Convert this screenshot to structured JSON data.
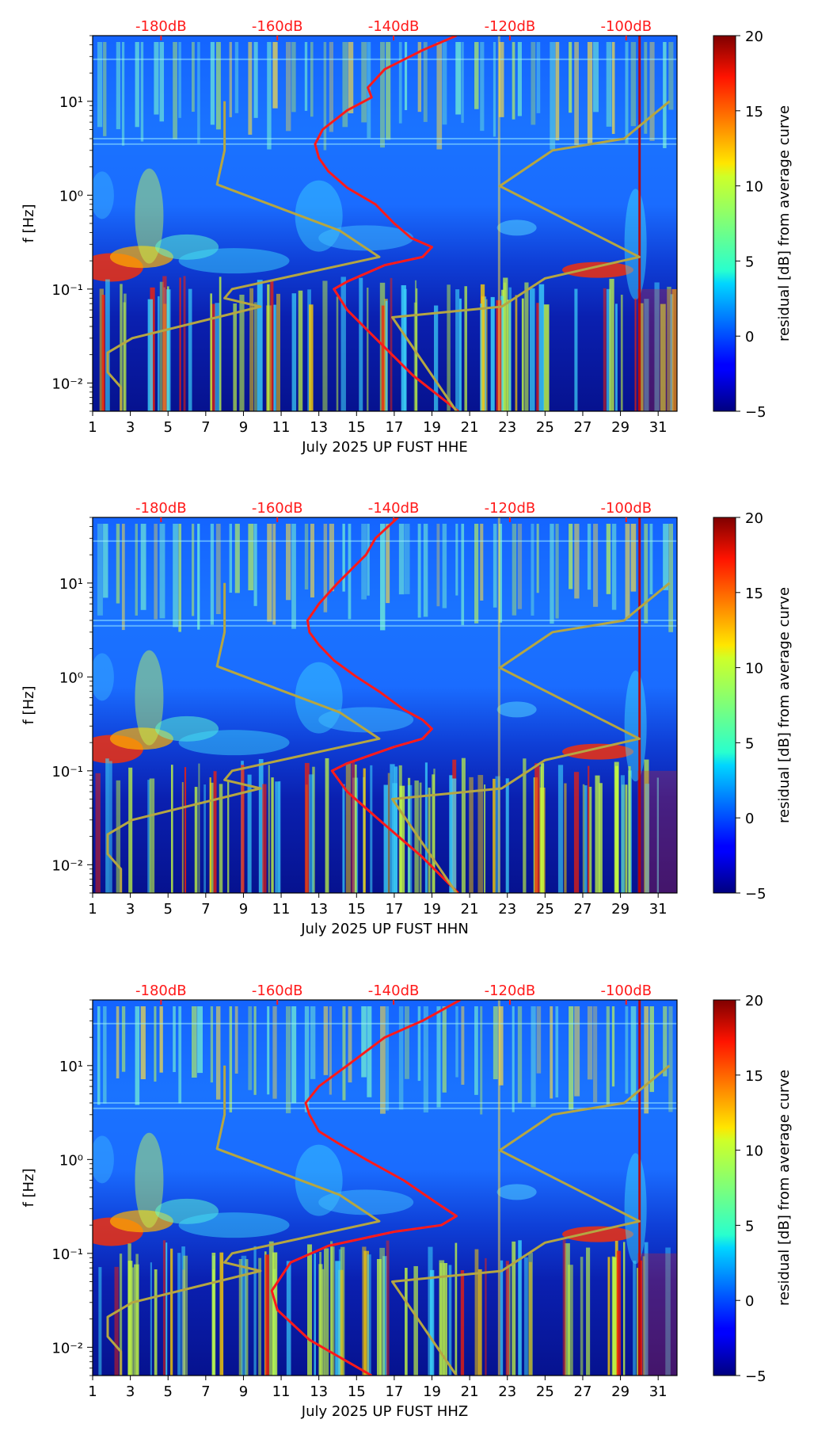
{
  "figure": {
    "title": ""
  },
  "chart_data": [
    {
      "type": "heatmap",
      "title": "",
      "xlabel": "July 2025 UP FUST  HHE",
      "ylabel": "f [Hz]",
      "x_ticks": [
        "1",
        "3",
        "5",
        "7",
        "9",
        "11",
        "13",
        "15",
        "17",
        "19",
        "21",
        "23",
        "25",
        "27",
        "29",
        "31"
      ],
      "xlim": [
        1,
        32
      ],
      "ylim": [
        0.005,
        50
      ],
      "yscale": "log",
      "y_ticks": [
        "10⁻²",
        "10⁻¹",
        "10⁰",
        "10¹"
      ],
      "top_axis_labels": [
        "-180dB",
        "-160dB",
        "-140dB",
        "-120dB",
        "-100dB"
      ],
      "colorbar": {
        "label": "residual [dB] from average curve",
        "min": -5,
        "max": 20,
        "ticks": [
          "−5",
          "0",
          "5",
          "10",
          "15",
          "20"
        ]
      },
      "series": [
        {
          "name": "average PSD (red)",
          "color": "#ff1a1a",
          "x": [
            20.3,
            18.5,
            16.5,
            15.6,
            15.8,
            14.5,
            13.2,
            12.8,
            13.0,
            13.5,
            14.5,
            16.0,
            17.0,
            17.9,
            19.0,
            18.5,
            16.5,
            14.5,
            13.8,
            14.5,
            16.0,
            18.0,
            20.4
          ],
          "f": [
            50,
            35,
            22,
            14,
            11,
            8,
            5,
            3.5,
            2.5,
            1.8,
            1.2,
            0.8,
            0.5,
            0.35,
            0.28,
            0.22,
            0.18,
            0.12,
            0.1,
            0.06,
            0.03,
            0.012,
            0.005
          ]
        },
        {
          "name": "low noise model (olive)",
          "color": "#b5a642",
          "x": [
            8.0,
            8.0,
            7.6,
            14.1,
            16.2,
            8.4,
            8.0,
            9.9,
            3.1,
            1.8,
            1.8,
            2.5,
            2.5
          ],
          "f": [
            10,
            3.0,
            1.3,
            0.42,
            0.22,
            0.1,
            0.08,
            0.065,
            0.03,
            0.021,
            0.013,
            0.009,
            0.005
          ]
        },
        {
          "name": "high noise model (olive)",
          "color": "#b5a642",
          "x": [
            31.6,
            29.2,
            25.4,
            22.6,
            30.0,
            25.0,
            22.7,
            16.9,
            20.3
          ],
          "f": [
            10,
            4.0,
            3.0,
            1.25,
            0.22,
            0.13,
            0.065,
            0.05,
            0.005
          ]
        }
      ]
    },
    {
      "type": "heatmap",
      "title": "",
      "xlabel": "July 2025 UP FUST  HHN",
      "ylabel": "f [Hz]",
      "x_ticks": [
        "1",
        "3",
        "5",
        "7",
        "9",
        "11",
        "13",
        "15",
        "17",
        "19",
        "21",
        "23",
        "25",
        "27",
        "29",
        "31"
      ],
      "xlim": [
        1,
        32
      ],
      "ylim": [
        0.005,
        50
      ],
      "yscale": "log",
      "y_ticks": [
        "10⁻²",
        "10⁻¹",
        "10⁰",
        "10¹"
      ],
      "top_axis_labels": [
        "-180dB",
        "-160dB",
        "-140dB",
        "-120dB",
        "-100dB"
      ],
      "colorbar": {
        "label": "residual [dB] from average curve",
        "min": -5,
        "max": 20,
        "ticks": [
          "−5",
          "0",
          "5",
          "10",
          "15",
          "20"
        ]
      },
      "series": [
        {
          "name": "average PSD (red)",
          "color": "#ff1a1a",
          "x": [
            17.2,
            16.0,
            15.5,
            14.0,
            13.0,
            12.4,
            12.5,
            13.0,
            13.8,
            15.0,
            16.2,
            17.5,
            18.5,
            19.0,
            18.5,
            17.0,
            14.5,
            13.7,
            14.5,
            16.2,
            18.5,
            20.4
          ],
          "f": [
            50,
            30,
            20,
            10,
            6,
            4,
            3,
            2.2,
            1.5,
            1.0,
            0.7,
            0.45,
            0.35,
            0.28,
            0.22,
            0.18,
            0.12,
            0.1,
            0.06,
            0.03,
            0.012,
            0.005
          ]
        },
        {
          "name": "low noise model (olive)",
          "color": "#b5a642",
          "x": [
            8.0,
            8.0,
            7.6,
            14.1,
            16.2,
            8.4,
            8.0,
            9.9,
            3.1,
            1.8,
            1.8,
            2.5,
            2.5
          ],
          "f": [
            10,
            3.0,
            1.3,
            0.42,
            0.22,
            0.1,
            0.08,
            0.065,
            0.03,
            0.021,
            0.013,
            0.009,
            0.005
          ]
        },
        {
          "name": "high noise model (olive)",
          "color": "#b5a642",
          "x": [
            31.6,
            29.2,
            25.4,
            22.6,
            30.0,
            25.0,
            22.7,
            16.9,
            20.3
          ],
          "f": [
            10,
            4.0,
            3.0,
            1.25,
            0.22,
            0.13,
            0.065,
            0.05,
            0.005
          ]
        }
      ]
    },
    {
      "type": "heatmap",
      "title": "",
      "xlabel": "July 2025 UP FUST  HHZ",
      "ylabel": "f [Hz]",
      "x_ticks": [
        "1",
        "3",
        "5",
        "7",
        "9",
        "11",
        "13",
        "15",
        "17",
        "19",
        "21",
        "23",
        "25",
        "27",
        "29",
        "31"
      ],
      "xlim": [
        1,
        32
      ],
      "ylim": [
        0.005,
        50
      ],
      "yscale": "log",
      "y_ticks": [
        "10⁻²",
        "10⁻¹",
        "10⁰",
        "10¹"
      ],
      "top_axis_labels": [
        "-180dB",
        "-160dB",
        "-140dB",
        "-120dB",
        "-100dB"
      ],
      "colorbar": {
        "label": "residual [dB] from average curve",
        "min": -5,
        "max": 20,
        "ticks": [
          "−5",
          "0",
          "5",
          "10",
          "15",
          "20"
        ]
      },
      "series": [
        {
          "name": "average PSD (red)",
          "color": "#ff1a1a",
          "x": [
            20.5,
            18.5,
            16.5,
            14.5,
            13.0,
            12.3,
            12.5,
            13.0,
            14.0,
            15.5,
            17.5,
            19.2,
            20.3,
            19.5,
            17.0,
            13.5,
            11.5,
            10.5,
            10.8,
            12.5,
            15.8
          ],
          "f": [
            50,
            30,
            20,
            10,
            6,
            4,
            3,
            2,
            1.5,
            1.0,
            0.6,
            0.35,
            0.25,
            0.2,
            0.17,
            0.12,
            0.08,
            0.04,
            0.025,
            0.012,
            0.005
          ]
        },
        {
          "name": "low noise model (olive)",
          "color": "#b5a642",
          "x": [
            8.0,
            8.0,
            7.6,
            14.1,
            16.2,
            8.4,
            8.0,
            9.9,
            3.1,
            1.8,
            1.8,
            2.5,
            2.5
          ],
          "f": [
            10,
            3.0,
            1.3,
            0.42,
            0.22,
            0.1,
            0.08,
            0.065,
            0.03,
            0.021,
            0.013,
            0.009,
            0.005
          ]
        },
        {
          "name": "high noise model (olive)",
          "color": "#b5a642",
          "x": [
            31.6,
            29.2,
            25.4,
            22.6,
            30.0,
            25.0,
            22.7,
            16.9,
            20.3
          ],
          "f": [
            10,
            4.0,
            3.0,
            1.25,
            0.22,
            0.13,
            0.065,
            0.05,
            0.005
          ]
        }
      ]
    }
  ]
}
